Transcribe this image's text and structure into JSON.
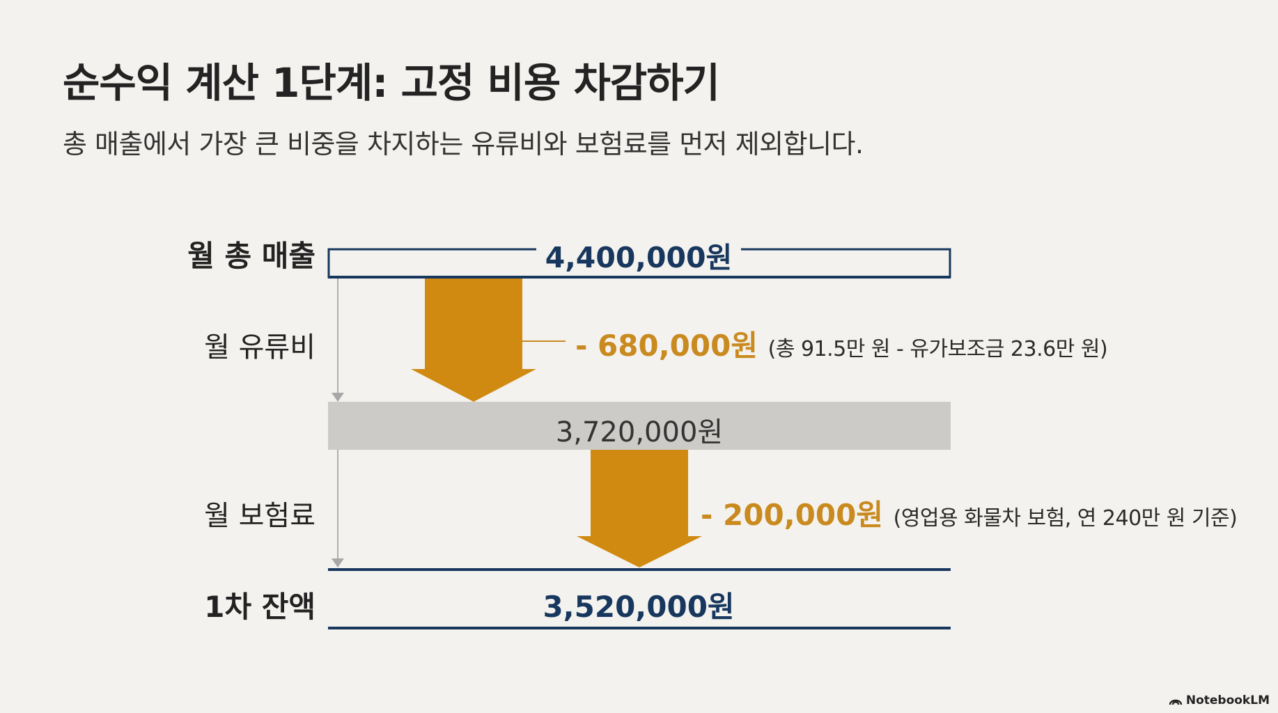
{
  "slide": {
    "title": "순수익 계산 1단계: 고정 비용 차감하기",
    "subtitle": "총 매출에서 가장 큰 비중을 차지하는 유류비와 보험료를 먼저 제외합니다."
  },
  "rows": {
    "revenue_label": "월 총 매출",
    "revenue_value": "4,400,000원",
    "fuel_label": "월 유류비",
    "fuel_deduction": "- 680,000원",
    "fuel_note": "(총 91.5만 원 - 유가보조금 23.6만 원)",
    "intermediate_value": "3,720,000원",
    "insurance_label": "월 보험료",
    "insurance_deduction": "- 200,000원",
    "insurance_note": "(영업용 화물차 보험, 연 240만 원 기준)",
    "balance_label": "1차 잔액",
    "balance_value": "3,520,000원"
  },
  "colors": {
    "navy": "#17375e",
    "orange_arrow": "#d08a12",
    "orange_text": "#c98a1f",
    "gray_bar": "#cccbc8",
    "background": "#f4f2ee"
  },
  "brand": {
    "name": "NotebookLM",
    "icon": "notebooklm-logo-icon"
  }
}
